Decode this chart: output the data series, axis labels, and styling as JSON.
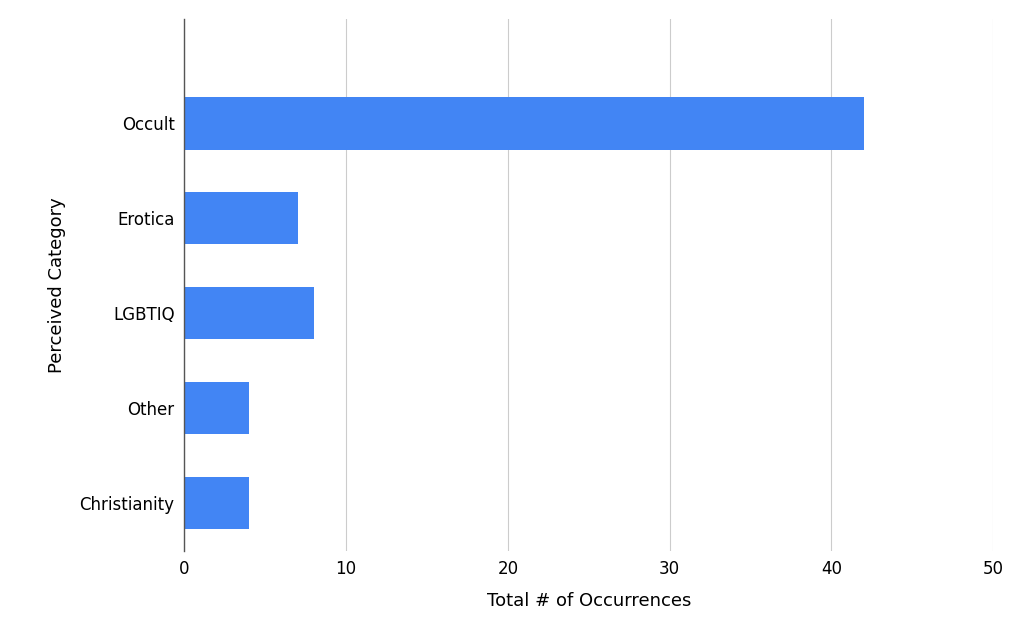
{
  "categories": [
    "Christianity",
    "Other",
    "LGBTIQ",
    "Erotica",
    "Occult"
  ],
  "values": [
    4,
    4,
    8,
    7,
    42
  ],
  "bar_color": "#4285F4",
  "xlabel": "Total # of Occurrences",
  "ylabel": "Perceived Category",
  "xlim": [
    0,
    50
  ],
  "xticks": [
    0,
    10,
    20,
    30,
    40,
    50
  ],
  "background_color": "#ffffff",
  "grid_color": "#cccccc",
  "label_fontsize": 13,
  "tick_fontsize": 12,
  "bar_height": 0.55
}
